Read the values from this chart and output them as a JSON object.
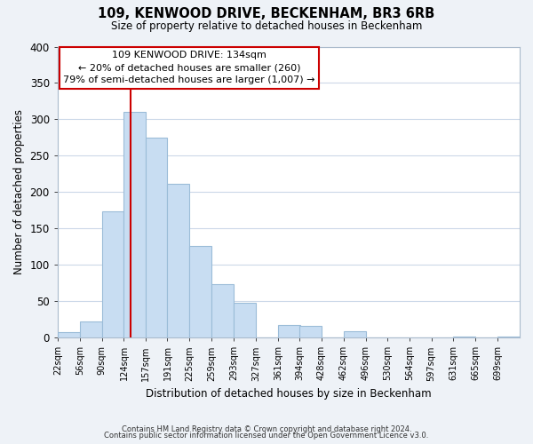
{
  "title": "109, KENWOOD DRIVE, BECKENHAM, BR3 6RB",
  "subtitle": "Size of property relative to detached houses in Beckenham",
  "xlabel": "Distribution of detached houses by size in Beckenham",
  "ylabel": "Number of detached properties",
  "bar_color": "#c8ddf2",
  "bar_edge_color": "#9bbcd8",
  "background_color": "#eef2f7",
  "plot_bg_color": "#ffffff",
  "grid_color": "#ccd8e8",
  "annotation_box_color": "#ffffff",
  "annotation_box_edge": "#cc0000",
  "vline_color": "#cc0000",
  "footnote1": "Contains HM Land Registry data © Crown copyright and database right 2024.",
  "footnote2": "Contains public sector information licensed under the Open Government Licence v3.0.",
  "annot_line1": "109 KENWOOD DRIVE: 134sqm",
  "annot_line2": "← 20% of detached houses are smaller (260)",
  "annot_line3": "79% of semi-detached houses are larger (1,007) →",
  "bins": [
    22,
    56,
    90,
    124,
    157,
    191,
    225,
    259,
    293,
    327,
    361,
    394,
    428,
    462,
    496,
    530,
    564,
    597,
    631,
    665,
    699
  ],
  "counts": [
    8,
    22,
    173,
    310,
    275,
    211,
    126,
    73,
    48,
    0,
    17,
    16,
    0,
    9,
    0,
    0,
    0,
    0,
    2,
    0,
    2
  ],
  "property_size": 134,
  "ylim": [
    0,
    400
  ],
  "yticks": [
    0,
    50,
    100,
    150,
    200,
    250,
    300,
    350,
    400
  ]
}
